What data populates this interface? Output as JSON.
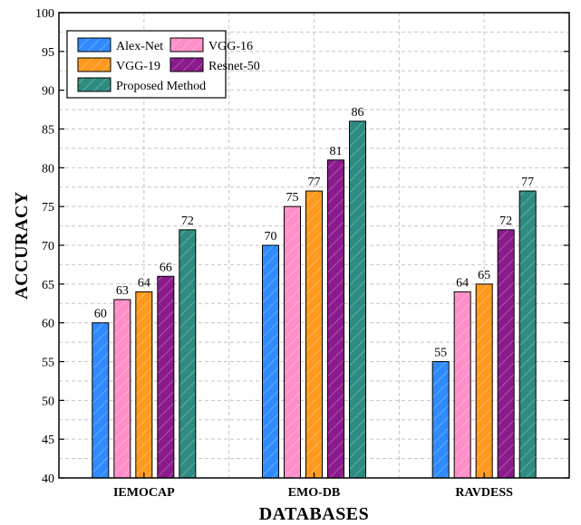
{
  "chart_data": {
    "type": "bar",
    "title": "",
    "xlabel": "DATABASES",
    "ylabel": "ACCURACY",
    "ylim": [
      40,
      100
    ],
    "yticks": [
      40,
      45,
      50,
      55,
      60,
      65,
      70,
      75,
      80,
      85,
      90,
      95,
      100
    ],
    "categories": [
      "IEMOCAP",
      "EMO-DB",
      "RAVDESS"
    ],
    "series": [
      {
        "name": "Alex-Net",
        "color": "#2f8bff",
        "values": [
          60,
          70,
          55
        ]
      },
      {
        "name": "VGG-16",
        "color": "#ff8fc8",
        "values": [
          63,
          75,
          64
        ]
      },
      {
        "name": "VGG-19",
        "color": "#ff9a1f",
        "values": [
          64,
          77,
          65
        ]
      },
      {
        "name": "Resnet-50",
        "color": "#8b1a8c",
        "values": [
          66,
          81,
          72
        ]
      },
      {
        "name": "Proposed Method",
        "color": "#2e8b80",
        "values": [
          72,
          86,
          77
        ]
      }
    ],
    "grid": true,
    "legend_position": "top-left",
    "bar_pattern": "diagonal-hatch"
  }
}
